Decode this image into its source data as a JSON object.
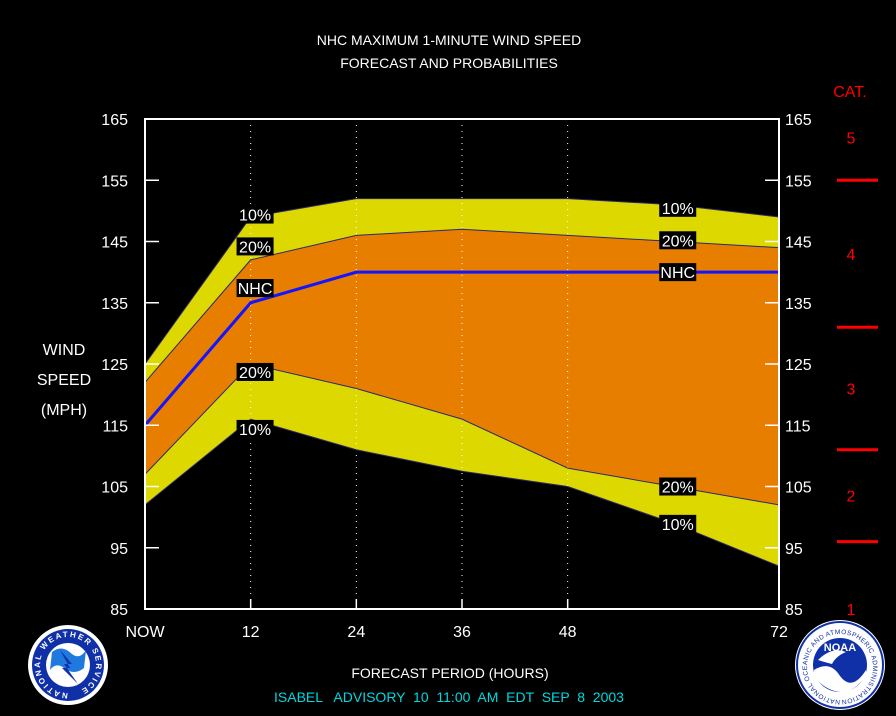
{
  "chart_data": {
    "type": "area",
    "title_line1": "NHC MAXIMUM 1-MINUTE WIND SPEED",
    "title_line2": "FORECAST AND PROBABILITIES",
    "ylabel_lines": [
      "WIND",
      "SPEED",
      "(MPH)"
    ],
    "xlabel": "FORECAST PERIOD (HOURS)",
    "advisory": "ISABEL   ADVISORY  10  11:00  AM  EDT  SEP  8  2003",
    "x_ticks": [
      {
        "x": 0,
        "label": "NOW"
      },
      {
        "x": 12,
        "label": "12"
      },
      {
        "x": 24,
        "label": "24"
      },
      {
        "x": 36,
        "label": "36"
      },
      {
        "x": 48,
        "label": "48"
      },
      {
        "x": 72,
        "label": "72"
      }
    ],
    "y_ticks": [
      85,
      95,
      105,
      115,
      125,
      135,
      145,
      155,
      165
    ],
    "xlim": [
      0,
      72
    ],
    "ylim": [
      85,
      165
    ],
    "grid_x": [
      12,
      24,
      36,
      48
    ],
    "x": [
      0,
      12,
      24,
      36,
      48,
      60,
      72
    ],
    "series": [
      {
        "name": "10%",
        "role": "upper",
        "values": [
          125,
          149,
          152,
          152,
          152,
          151,
          149
        ]
      },
      {
        "name": "20%",
        "role": "upper",
        "values": [
          122,
          142,
          146,
          147,
          146,
          145,
          144
        ]
      },
      {
        "name": "NHC",
        "role": "forecast",
        "values": [
          115,
          135,
          140,
          140,
          140,
          140,
          140
        ]
      },
      {
        "name": "20%",
        "role": "lower",
        "values": [
          107,
          125,
          121,
          116,
          108,
          105,
          102
        ]
      },
      {
        "name": "10%",
        "role": "lower",
        "values": [
          102,
          116,
          111,
          107.5,
          105,
          99,
          92
        ]
      }
    ],
    "series_labels": [
      {
        "text": "10%",
        "x": 12.5,
        "y": 149.4
      },
      {
        "text": "20%",
        "x": 12.5,
        "y": 144.2
      },
      {
        "text": "NHC",
        "x": 12.5,
        "y": 137.4
      },
      {
        "text": "20%",
        "x": 12.5,
        "y": 123.7
      },
      {
        "text": "10%",
        "x": 12.5,
        "y": 114.4
      },
      {
        "text": "10%",
        "x": 60.5,
        "y": 150.5
      },
      {
        "text": "20%",
        "x": 60.5,
        "y": 145.2
      },
      {
        "text": "NHC",
        "x": 60.5,
        "y": 140
      },
      {
        "text": "20%",
        "x": 60.5,
        "y": 105
      },
      {
        "text": "10%",
        "x": 60.5,
        "y": 98.9
      }
    ],
    "category": {
      "header": "CAT.",
      "thresholds_mph": [
        96,
        111,
        131,
        155
      ],
      "labels": [
        {
          "text": "1",
          "y": 85
        },
        {
          "text": "2",
          "y": 103.5
        },
        {
          "text": "3",
          "y": 121
        },
        {
          "text": "4",
          "y": 143
        },
        {
          "text": "5",
          "y": 162
        }
      ]
    },
    "colors": {
      "background": "#000000",
      "outer_band": "#dcd800",
      "inner_band": "#e87e00",
      "forecast_line": "#1414ff",
      "band_edges": "#2a2a6e",
      "plot_border": "#ffffff",
      "title_text": "#ffffff",
      "advisory_text": "#00d8e0",
      "category": "#ff0000"
    }
  },
  "logos": {
    "left": "nws-logo",
    "left_ring_text": "NATIONAL WEATHER SERVICE",
    "right": "noaa-logo",
    "right_center_text": "NOAA",
    "right_ring_text": "NATIONAL OCEANIC AND ATMOSPHERIC ADMINISTRATION · U.S. DEPARTMENT OF COMMERCE"
  }
}
